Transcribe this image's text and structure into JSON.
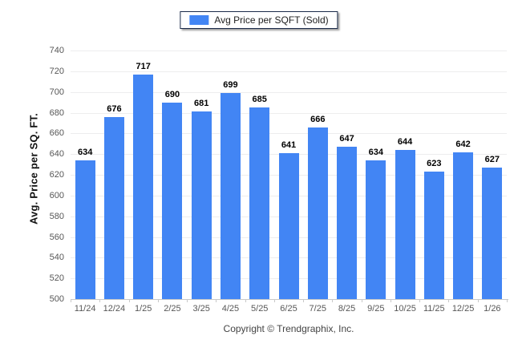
{
  "legend": {
    "label": "Avg Price per SQFT (Sold)"
  },
  "footer": {
    "copyright": "Copyright © Trendgraphix, Inc."
  },
  "colors": {
    "bar": "#4285F4",
    "grid": "#ededee",
    "axis": "#c9c9c9",
    "tick_text": "#575757",
    "value_text": "#000000",
    "legend_border": "#1c2b4a"
  },
  "chart_data": {
    "type": "bar",
    "title": "",
    "legend": [
      "Avg Price per SQFT (Sold)"
    ],
    "legend_position": "top-center",
    "categories": [
      "11/24",
      "12/24",
      "1/25",
      "2/25",
      "3/25",
      "4/25",
      "5/25",
      "6/25",
      "7/25",
      "8/25",
      "9/25",
      "10/25",
      "11/25",
      "12/25",
      "1/26"
    ],
    "values": [
      634,
      676,
      717,
      690,
      681,
      699,
      685,
      641,
      666,
      647,
      634,
      644,
      623,
      642,
      627
    ],
    "xlabel": "",
    "ylabel": "Avg. Price per SQ. FT.",
    "ylim": [
      500,
      740
    ],
    "ytick_step": 20,
    "grid": true,
    "bar_color": "#4285F4"
  }
}
